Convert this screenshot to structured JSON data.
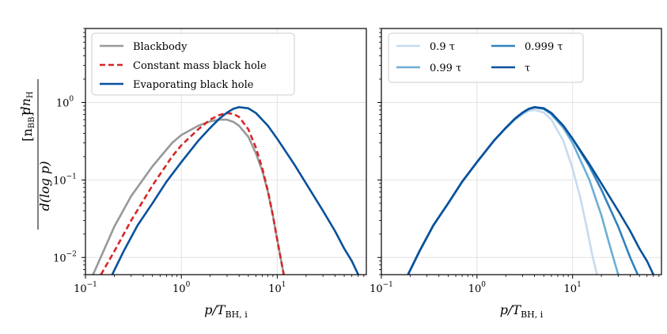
{
  "figure": {
    "ylabel_num": "dn",
    "ylabel_num_sub": "H",
    "ylabel_den": "d(log p)",
    "ylabel_unit": "[n",
    "ylabel_unit_sub": "BB",
    "ylabel_unit_close": "]"
  },
  "chart_data": [
    {
      "type": "line",
      "xscale": "log",
      "yscale": "log",
      "xlim": [
        0.1,
        85
      ],
      "ylim": [
        0.006,
        9
      ],
      "xlabel_main": "p/T",
      "xlabel_sub": "BH, i",
      "xticks": [
        0.1,
        1,
        10
      ],
      "xtick_labels": [
        {
          "base": "10",
          "exp": "−1"
        },
        {
          "base": "10",
          "exp": "0"
        },
        {
          "base": "10",
          "exp": "1"
        }
      ],
      "yticks": [
        0.01,
        0.1,
        1
      ],
      "ytick_labels": [
        {
          "base": "10",
          "exp": "−2"
        },
        {
          "base": "10",
          "exp": "−1"
        },
        {
          "base": "10",
          "exp": "0"
        }
      ],
      "grid": true,
      "legend": {
        "location": "upper-left",
        "columns": 1
      },
      "series": [
        {
          "name": "Blackbody",
          "color": "#999999",
          "style": "solid",
          "x": [
            0.12,
            0.2,
            0.3,
            0.5,
            0.8,
            1.0,
            1.5,
            2.0,
            2.5,
            3.0,
            3.5,
            4.0,
            5.0,
            6.0,
            7.0,
            8.0,
            9.0,
            10.0,
            11.0,
            11.7
          ],
          "y": [
            0.006,
            0.025,
            0.062,
            0.15,
            0.3,
            0.38,
            0.5,
            0.57,
            0.6,
            0.6,
            0.56,
            0.5,
            0.36,
            0.22,
            0.13,
            0.07,
            0.035,
            0.017,
            0.009,
            0.006
          ]
        },
        {
          "name": "Constant mass black hole",
          "color": "#d62728",
          "style": "dashed",
          "x": [
            0.145,
            0.2,
            0.3,
            0.5,
            0.8,
            1.0,
            1.5,
            2.0,
            2.5,
            3.0,
            3.5,
            4.0,
            5.0,
            6.0,
            7.0,
            8.0,
            9.0,
            10.0,
            11.0,
            11.7
          ],
          "y": [
            0.006,
            0.012,
            0.03,
            0.085,
            0.2,
            0.28,
            0.45,
            0.6,
            0.69,
            0.73,
            0.71,
            0.65,
            0.45,
            0.26,
            0.14,
            0.072,
            0.035,
            0.017,
            0.009,
            0.006
          ]
        },
        {
          "name": "Evaporating black hole",
          "color": "#08519c",
          "style": "solid",
          "x": [
            0.19,
            0.25,
            0.35,
            0.5,
            0.7,
            1.0,
            1.5,
            2.0,
            2.5,
            3.0,
            3.5,
            4.0,
            5.0,
            6.0,
            8.0,
            10.0,
            15.0,
            20.0,
            30.0,
            40.0,
            50.0,
            60.0,
            70.0
          ],
          "y": [
            0.006,
            0.012,
            0.026,
            0.05,
            0.095,
            0.17,
            0.32,
            0.47,
            0.62,
            0.74,
            0.83,
            0.87,
            0.84,
            0.73,
            0.5,
            0.34,
            0.16,
            0.09,
            0.04,
            0.022,
            0.013,
            0.009,
            0.006
          ]
        }
      ]
    },
    {
      "type": "line",
      "xscale": "log",
      "yscale": "log",
      "xlim": [
        0.1,
        85
      ],
      "ylim": [
        0.006,
        9
      ],
      "xlabel_main": "p/T",
      "xlabel_sub": "BH, i",
      "xticks": [
        0.1,
        1,
        10
      ],
      "xtick_labels": [
        {
          "base": "10",
          "exp": "−1"
        },
        {
          "base": "10",
          "exp": "0"
        },
        {
          "base": "10",
          "exp": "1"
        }
      ],
      "yticks": [
        0.01,
        0.1,
        1
      ],
      "ytick_labels": [],
      "grid": true,
      "legend": {
        "location": "upper-left",
        "columns": 2
      },
      "series": [
        {
          "name": "0.9 τ",
          "color": "#c6dbef",
          "style": "solid",
          "x": [
            0.19,
            0.25,
            0.35,
            0.5,
            0.7,
            1.0,
            1.5,
            2.0,
            2.5,
            3.0,
            3.5,
            4.0,
            5.0,
            6.0,
            8.0,
            10.0,
            12.0,
            14.0,
            16.0,
            18.0
          ],
          "y": [
            0.006,
            0.012,
            0.026,
            0.05,
            0.095,
            0.17,
            0.32,
            0.46,
            0.6,
            0.7,
            0.78,
            0.8,
            0.74,
            0.6,
            0.32,
            0.14,
            0.06,
            0.025,
            0.011,
            0.006
          ]
        },
        {
          "name": "0.99 τ",
          "color": "#6baed6",
          "style": "solid",
          "x": [
            0.19,
            0.25,
            0.35,
            0.5,
            0.7,
            1.0,
            1.5,
            2.0,
            2.5,
            3.0,
            3.5,
            4.0,
            5.0,
            6.0,
            8.0,
            10.0,
            15.0,
            20.0,
            25.0,
            30.0
          ],
          "y": [
            0.006,
            0.012,
            0.026,
            0.05,
            0.095,
            0.17,
            0.32,
            0.47,
            0.61,
            0.73,
            0.82,
            0.86,
            0.82,
            0.7,
            0.47,
            0.3,
            0.1,
            0.035,
            0.013,
            0.006
          ]
        },
        {
          "name": "0.999 τ",
          "color": "#3182bd",
          "style": "solid",
          "x": [
            0.19,
            0.25,
            0.35,
            0.5,
            0.7,
            1.0,
            1.5,
            2.0,
            2.5,
            3.0,
            3.5,
            4.0,
            5.0,
            6.0,
            8.0,
            10.0,
            15.0,
            20.0,
            30.0,
            40.0,
            48.0
          ],
          "y": [
            0.006,
            0.012,
            0.026,
            0.05,
            0.095,
            0.17,
            0.32,
            0.47,
            0.62,
            0.74,
            0.83,
            0.87,
            0.84,
            0.73,
            0.5,
            0.34,
            0.15,
            0.075,
            0.025,
            0.01,
            0.006
          ]
        },
        {
          "name": "τ",
          "color": "#08519c",
          "style": "solid",
          "x": [
            0.19,
            0.25,
            0.35,
            0.5,
            0.7,
            1.0,
            1.5,
            2.0,
            2.5,
            3.0,
            3.5,
            4.0,
            5.0,
            6.0,
            8.0,
            10.0,
            15.0,
            20.0,
            30.0,
            40.0,
            50.0,
            60.0,
            70.0
          ],
          "y": [
            0.006,
            0.012,
            0.026,
            0.05,
            0.095,
            0.17,
            0.32,
            0.47,
            0.62,
            0.74,
            0.83,
            0.87,
            0.84,
            0.73,
            0.5,
            0.34,
            0.16,
            0.09,
            0.04,
            0.022,
            0.013,
            0.009,
            0.006
          ]
        }
      ]
    }
  ]
}
